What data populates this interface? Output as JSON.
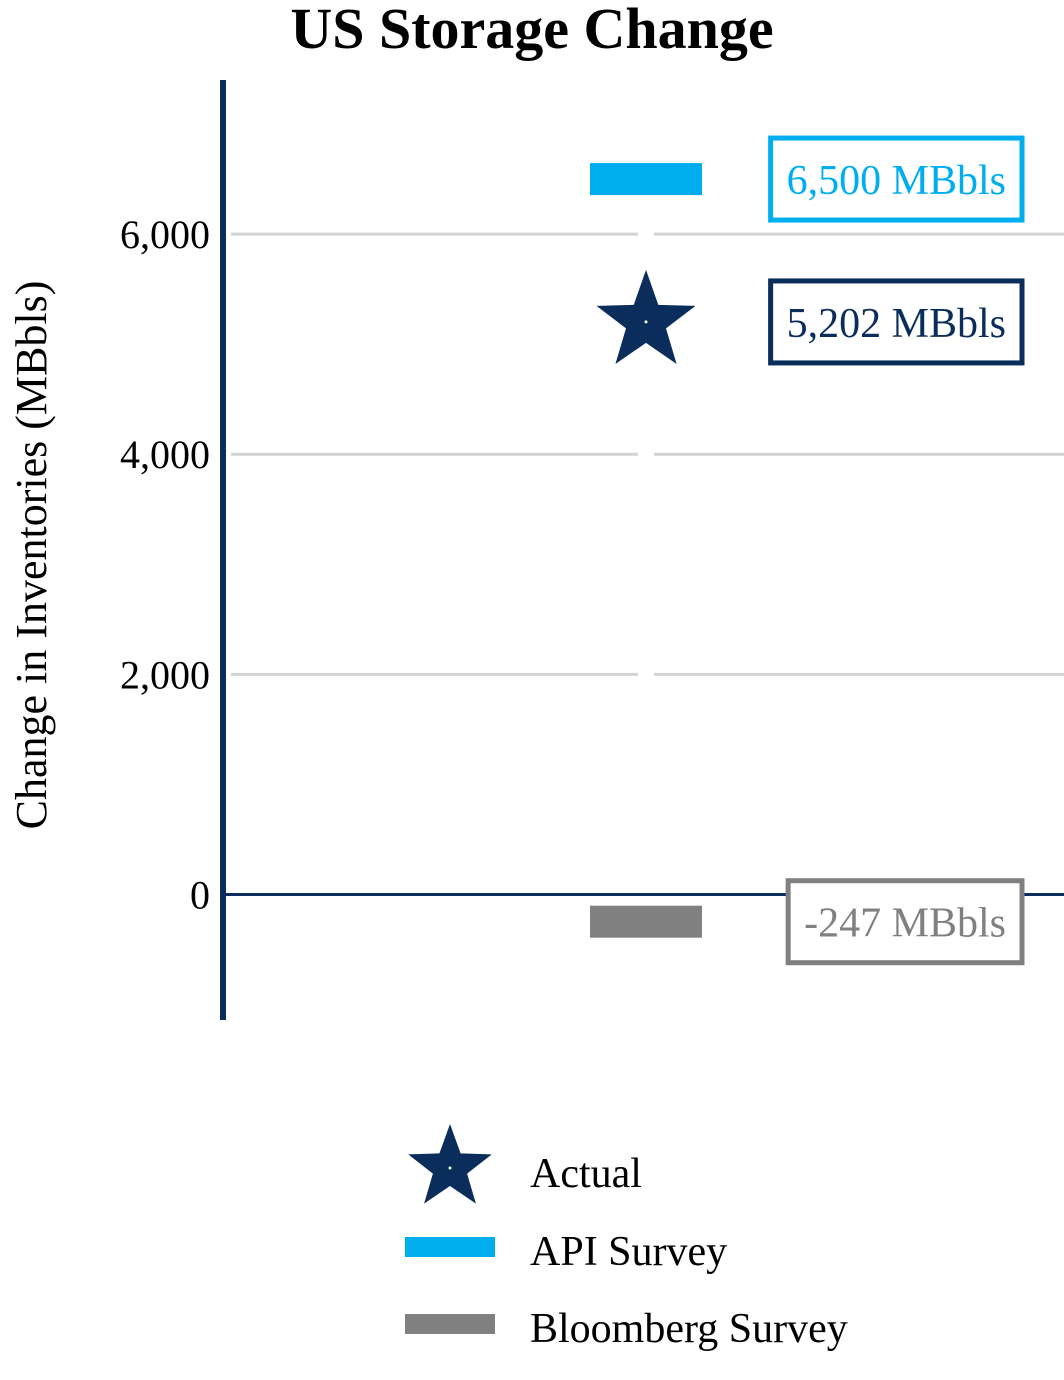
{
  "chart_data": {
    "type": "scatter",
    "title": "US Storage Change",
    "ylabel": "Change in Inventories (MBbls)",
    "xlabel": "",
    "ylim": [
      -1140,
      7400
    ],
    "yticks": [
      0,
      2000,
      4000,
      6000
    ],
    "ytick_labels": [
      "0",
      "2,000",
      "4,000",
      "6,000"
    ],
    "grid": true,
    "legend_position": "bottom",
    "series": [
      {
        "name": "Actual",
        "marker": "star",
        "color": "#0b2d5b",
        "value": 5202,
        "label": "5,202 MBbls"
      },
      {
        "name": "API Survey",
        "marker": "bar",
        "color": "#00aeef",
        "value": 6500,
        "label": "6,500 MBbls"
      },
      {
        "name": "Bloomberg Survey",
        "marker": "bar",
        "color": "#808080",
        "value": -247,
        "label": "-247 MBbls"
      }
    ],
    "colors": {
      "axis": "#0b2d5b",
      "grid": "#d3d3d3"
    }
  }
}
